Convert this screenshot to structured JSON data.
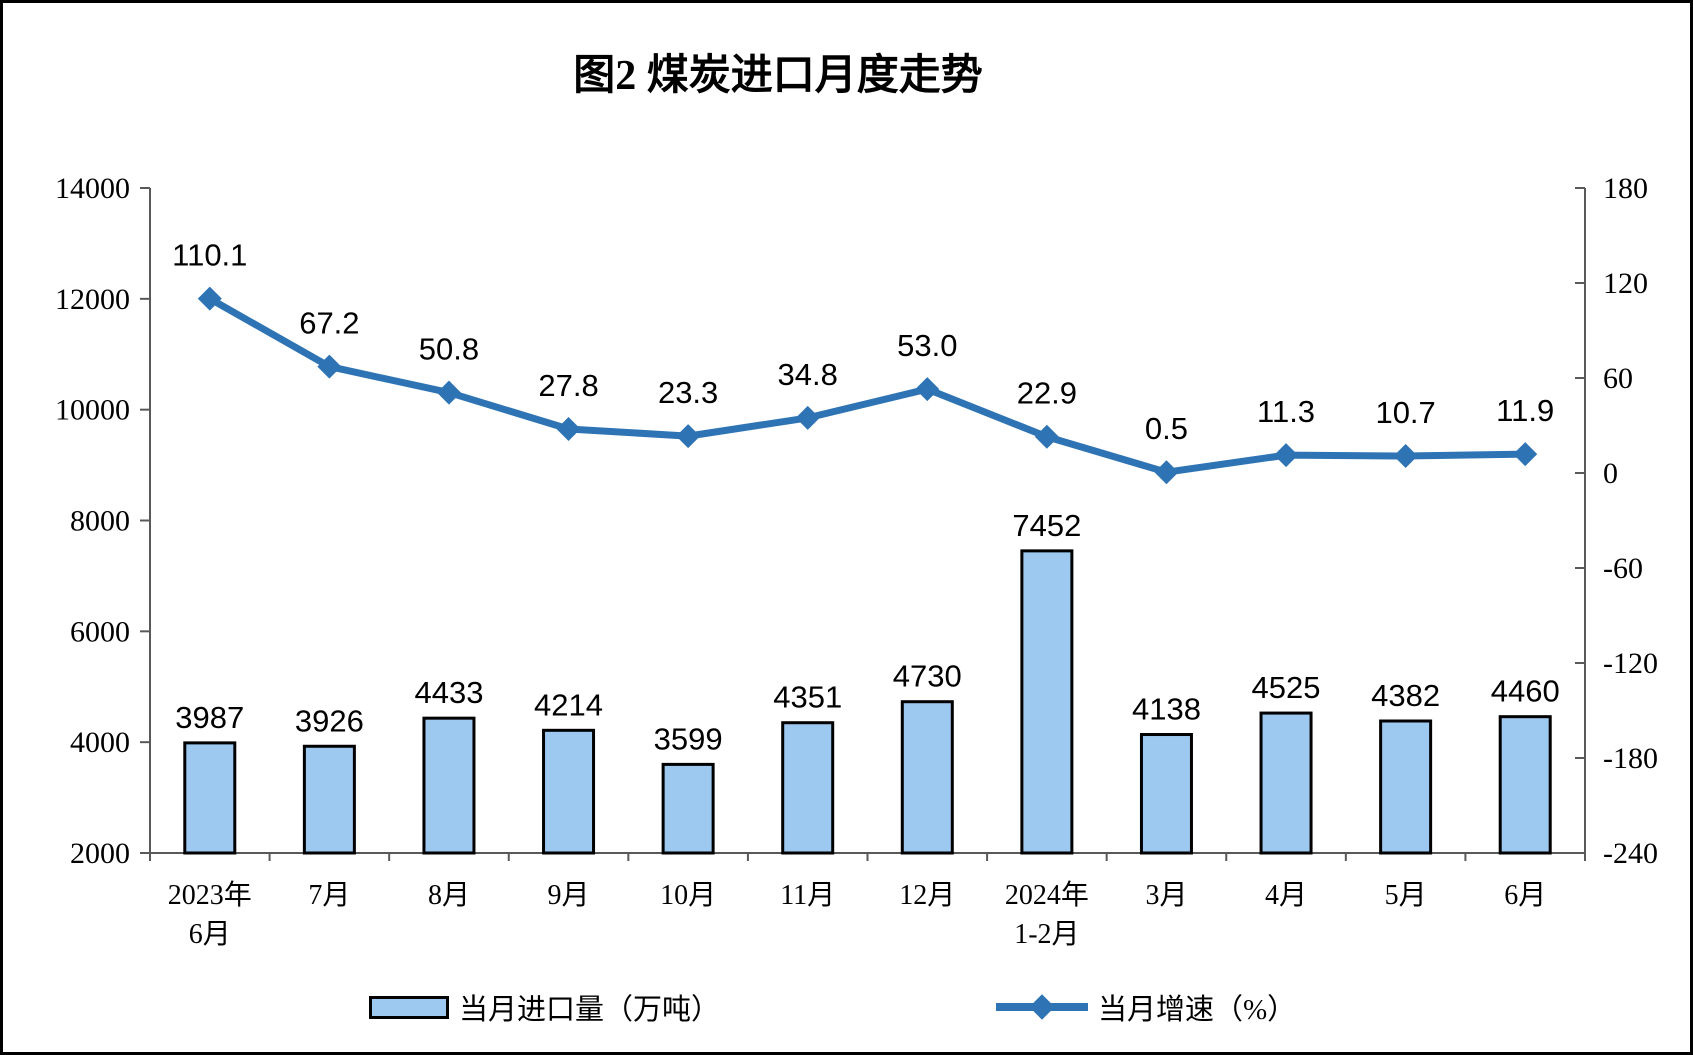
{
  "title": "图2 煤炭进口月度走势",
  "colors": {
    "bar_fill": "#9DC9F1",
    "bar_border": "#000000",
    "line": "#2E74B5",
    "axis": "#595959",
    "text": "#000000"
  },
  "legend": {
    "bar_label": "当月进口量（万吨）",
    "line_label": "当月增速（%）"
  },
  "chart_data": {
    "type": "combo-bar-line",
    "title": "图2 煤炭进口月度走势",
    "categories": [
      [
        "2023年",
        "6月"
      ],
      [
        "7月"
      ],
      [
        "8月"
      ],
      [
        "9月"
      ],
      [
        "10月"
      ],
      [
        "11月"
      ],
      [
        "12月"
      ],
      [
        "2024年",
        "1-2月"
      ],
      [
        "3月"
      ],
      [
        "4月"
      ],
      [
        "5月"
      ],
      [
        "6月"
      ]
    ],
    "series": [
      {
        "name": "当月进口量（万吨）",
        "type": "bar",
        "axis": "left",
        "values": [
          3987,
          3926,
          4433,
          4214,
          3599,
          4351,
          4730,
          7452,
          4138,
          4525,
          4382,
          4460
        ],
        "labels": [
          "3987",
          "3926",
          "4433",
          "4214",
          "3599",
          "4351",
          "4730",
          "7452",
          "4138",
          "4525",
          "4382",
          "4460"
        ]
      },
      {
        "name": "当月增速（%）",
        "type": "line",
        "axis": "right",
        "values": [
          110.1,
          67.2,
          50.8,
          27.8,
          23.3,
          34.8,
          53.0,
          22.9,
          0.5,
          11.3,
          10.7,
          11.9
        ],
        "labels": [
          "110.1",
          "67.2",
          "50.8",
          "27.8",
          "23.3",
          "34.8",
          "53.0",
          "22.9",
          "0.5",
          "11.3",
          "10.7",
          "11.9"
        ]
      }
    ],
    "left_axis": {
      "min": 2000,
      "max": 14000,
      "ticks": [
        2000,
        4000,
        6000,
        8000,
        10000,
        12000,
        14000
      ]
    },
    "right_axis": {
      "min": -240,
      "max": 180,
      "ticks": [
        -240,
        -180,
        -120,
        -60,
        0,
        60,
        120,
        180
      ]
    },
    "grid": false,
    "legend_position": "bottom"
  }
}
